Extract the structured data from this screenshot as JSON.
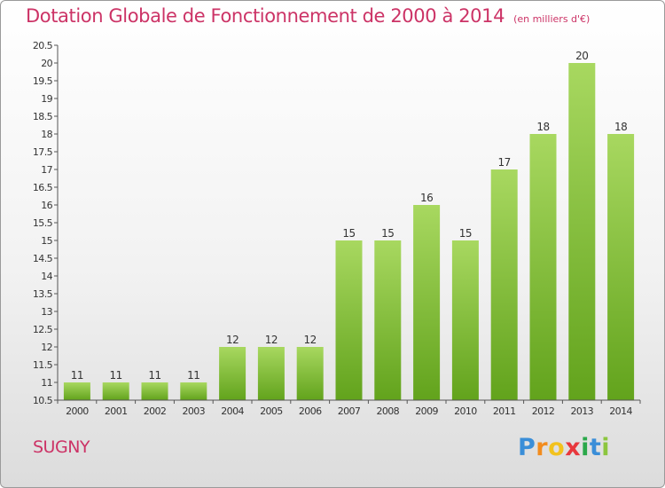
{
  "header": {
    "title": "Dotation Globale de Fonctionnement de 2000 à 2014",
    "unit": "(en milliers d'€)"
  },
  "footer": {
    "place": "SUGNY",
    "logo_text": "Proxiti",
    "logo_letters": [
      "P",
      "r",
      "o",
      "x",
      "i",
      "t",
      "i"
    ],
    "logo_colors": [
      "#3a8ed8",
      "#f28c1e",
      "#f2c21e",
      "#e8383d",
      "#2aa84a",
      "#3a8ed8",
      "#8cc63f"
    ]
  },
  "colors": {
    "accent": "#cc3366",
    "bar_light": "#a8d860",
    "bar_dark": "#62a31c"
  },
  "chart_data": {
    "type": "bar",
    "title": "Dotation Globale de Fonctionnement de 2000 à 2014",
    "subtitle": "(en milliers d'€)",
    "xlabel": "",
    "ylabel": "",
    "categories": [
      "2000",
      "2001",
      "2002",
      "2003",
      "2004",
      "2005",
      "2006",
      "2007",
      "2008",
      "2009",
      "2010",
      "2011",
      "2012",
      "2013",
      "2014"
    ],
    "values": [
      11,
      11,
      11,
      11,
      12,
      12,
      12,
      15,
      15,
      16,
      15,
      17,
      18,
      20,
      18
    ],
    "ylim": [
      10.5,
      20.5
    ],
    "yticks": [
      "10.5",
      "11",
      "11.5",
      "12",
      "12.5",
      "13",
      "13.5",
      "14",
      "14.5",
      "15",
      "15.5",
      "16",
      "16.5",
      "17",
      "17.5",
      "18",
      "18.5",
      "19",
      "19.5",
      "20",
      "20.5"
    ],
    "grid": false,
    "legend": "none"
  }
}
